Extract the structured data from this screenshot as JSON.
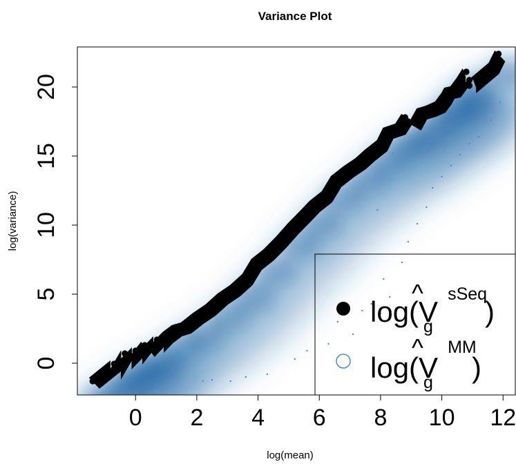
{
  "chart_data": {
    "type": "scatter",
    "title": "Variance Plot",
    "xlabel": "log(mean)",
    "ylabel": "log(variance)",
    "xlim": [
      -1.9,
      12.4
    ],
    "ylim": [
      -2.3,
      22.9
    ],
    "xticks": [
      "0",
      "2",
      "4",
      "6",
      "8",
      "10",
      "12"
    ],
    "yticks": [
      "0",
      "5",
      "10",
      "15",
      "20"
    ],
    "legend_position": "bottom-right",
    "colors": {
      "sseq": "#000000",
      "mm_point": "#4a8cc8",
      "density": "#1a63a3"
    },
    "legend": {
      "sseq": {
        "prefix": "log(",
        "symbol": "V",
        "subscript": "g",
        "superscript": "sSeq",
        "suffix": ")"
      },
      "mm": {
        "prefix": "log(",
        "symbol": "V",
        "subscript": "g",
        "superscript": "MM",
        "suffix": ")"
      }
    },
    "series": [
      {
        "name": "sSeq",
        "marker": "filled-circle",
        "points": [
          [
            -1.4,
            -1.3
          ],
          [
            -0.7,
            -0.05
          ],
          [
            -0.7,
            -0.65
          ],
          [
            -0.35,
            0.7
          ],
          [
            -0.35,
            0.1
          ],
          [
            0,
            0.9
          ],
          [
            0,
            0.45
          ],
          [
            0.3,
            1.3
          ],
          [
            0.4,
            1.0
          ],
          [
            0.7,
            1.7
          ],
          [
            0.7,
            1.3
          ],
          [
            1.0,
            2.0
          ],
          [
            1.3,
            2.5
          ],
          [
            1.6,
            2.7
          ],
          [
            2.0,
            3.4
          ],
          [
            2.4,
            4.0
          ],
          [
            2.8,
            4.8
          ],
          [
            3.2,
            5.4
          ],
          [
            3.6,
            6.2
          ],
          [
            3.9,
            7.3
          ],
          [
            4.3,
            8.0
          ],
          [
            4.7,
            8.9
          ],
          [
            5.1,
            9.9
          ],
          [
            5.5,
            10.8
          ],
          [
            5.8,
            11.5
          ],
          [
            6.2,
            12.2
          ],
          [
            6.5,
            13.3
          ],
          [
            6.9,
            14.0
          ],
          [
            7.3,
            14.6
          ],
          [
            7.6,
            15.2
          ],
          [
            8.0,
            15.9
          ],
          [
            8.2,
            16.8
          ],
          [
            8.6,
            17.1
          ],
          [
            8.8,
            17.8
          ],
          [
            9.1,
            17.4
          ],
          [
            9.3,
            18.2
          ],
          [
            9.6,
            18.4
          ],
          [
            9.9,
            18.7
          ],
          [
            10.1,
            19.3
          ],
          [
            10.2,
            19.7
          ],
          [
            10.4,
            19.8
          ],
          [
            10.6,
            20.4
          ],
          [
            10.8,
            21.1
          ],
          [
            10.9,
            20.5
          ],
          [
            10.9,
            20.1
          ],
          [
            11.65,
            21.5
          ],
          [
            11.85,
            22.4
          ]
        ]
      },
      {
        "name": "MM",
        "marker": "open-circle",
        "points": [
          [
            2.2,
            -1.3
          ],
          [
            2.5,
            -1.2
          ],
          [
            3.1,
            -1.3
          ],
          [
            3.6,
            -1.0
          ],
          [
            4.3,
            -0.8
          ],
          [
            5.2,
            0.3
          ],
          [
            5.6,
            0.9
          ],
          [
            6.3,
            1.4
          ],
          [
            6.6,
            3.0
          ],
          [
            7.1,
            2.1
          ],
          [
            7.4,
            3.8
          ],
          [
            7.7,
            4.3
          ],
          [
            8.0,
            3.6
          ],
          [
            8.3,
            4.8
          ],
          [
            8.1,
            6.1
          ],
          [
            8.7,
            7.3
          ],
          [
            8.9,
            8.8
          ],
          [
            9.2,
            10.1
          ],
          [
            9.5,
            11.3
          ],
          [
            9.7,
            12.7
          ],
          [
            10.0,
            13.5
          ],
          [
            10.3,
            14.3
          ],
          [
            10.6,
            15.1
          ],
          [
            10.9,
            15.9
          ],
          [
            11.2,
            16.4
          ],
          [
            11.6,
            17.6
          ],
          [
            11.9,
            18.9
          ],
          [
            8.4,
            15.2
          ],
          [
            9.0,
            15.5
          ],
          [
            9.6,
            16.1
          ],
          [
            7.9,
            11.1
          ]
        ]
      }
    ]
  }
}
